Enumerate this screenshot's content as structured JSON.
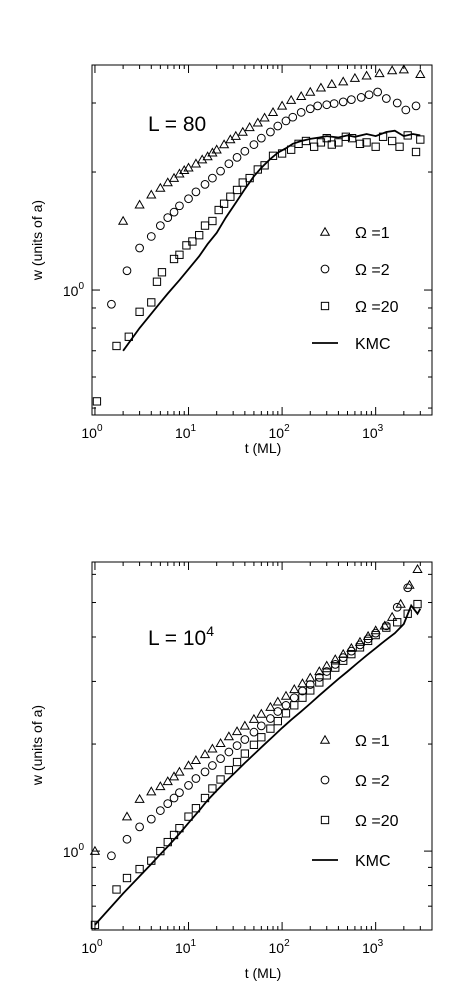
{
  "chart_data": [
    {
      "type": "scatter",
      "annotation": "L = 80",
      "xlabel": "t (ML)",
      "ylabel": "w  (units of a)",
      "xscale": "log",
      "yscale": "log",
      "xlim": [
        0.93,
        4000
      ],
      "ylim": [
        0.48,
        3.75
      ],
      "x_ticks": [
        {
          "base": "10",
          "exp": "0",
          "value": 1
        },
        {
          "base": "10",
          "exp": "1",
          "value": 10
        },
        {
          "base": "10",
          "exp": "2",
          "value": 100
        },
        {
          "base": "10",
          "exp": "3",
          "value": 1000
        }
      ],
      "y_ticks": [
        {
          "base": "10",
          "exp": "0",
          "value": 1
        }
      ],
      "legend_position": "right",
      "series": [
        {
          "name": "Ω =1",
          "marker": "triangle",
          "x": [
            2,
            3,
            4,
            5,
            6,
            7,
            8,
            9,
            10,
            12,
            14,
            16,
            18,
            20,
            24,
            28,
            32,
            38,
            45,
            55,
            65,
            80,
            100,
            125,
            160,
            200,
            260,
            340,
            450,
            600,
            800,
            1100,
            1500,
            2000,
            3000
          ],
          "y": [
            1.5,
            1.65,
            1.75,
            1.82,
            1.88,
            1.93,
            1.98,
            2.02,
            2.05,
            2.1,
            2.15,
            2.19,
            2.24,
            2.28,
            2.35,
            2.42,
            2.47,
            2.53,
            2.6,
            2.67,
            2.75,
            2.84,
            2.95,
            3.05,
            3.12,
            3.2,
            3.28,
            3.35,
            3.4,
            3.47,
            3.52,
            3.57,
            3.63,
            3.65,
            3.55
          ]
        },
        {
          "name": "Ω =2",
          "marker": "circle",
          "x": [
            1.5,
            2.2,
            3,
            4,
            5,
            6,
            7,
            8,
            10,
            12,
            15,
            18,
            22,
            27,
            33,
            40,
            50,
            60,
            75,
            90,
            110,
            130,
            160,
            200,
            240,
            300,
            360,
            450,
            550,
            700,
            850,
            1050,
            1300,
            1700,
            2100,
            2700
          ],
          "y": [
            0.92,
            1.12,
            1.28,
            1.37,
            1.46,
            1.53,
            1.58,
            1.64,
            1.71,
            1.78,
            1.86,
            1.93,
            2.01,
            2.1,
            2.18,
            2.26,
            2.35,
            2.44,
            2.53,
            2.62,
            2.7,
            2.76,
            2.84,
            2.9,
            2.95,
            2.97,
            2.99,
            3.02,
            3.06,
            3.1,
            3.15,
            3.2,
            3.08,
            3.0,
            2.88,
            2.95
          ]
        },
        {
          "name": "Ω =20",
          "marker": "square",
          "x": [
            1.05,
            1.7,
            2.3,
            3,
            4,
            4.6,
            5.2,
            7,
            8,
            9.5,
            11,
            13,
            15,
            18,
            21,
            24,
            28,
            33,
            38,
            45,
            55,
            65,
            80,
            100,
            125,
            150,
            180,
            220,
            260,
            300,
            340,
            400,
            480,
            560,
            680,
            800,
            1000,
            1200,
            1500,
            1800,
            2200,
            2700,
            3000
          ],
          "y": [
            0.52,
            0.72,
            0.76,
            0.88,
            0.93,
            1.05,
            1.11,
            1.2,
            1.23,
            1.3,
            1.33,
            1.38,
            1.46,
            1.5,
            1.6,
            1.66,
            1.73,
            1.8,
            1.88,
            1.93,
            2.03,
            2.08,
            2.2,
            2.23,
            2.28,
            2.36,
            2.4,
            2.32,
            2.38,
            2.44,
            2.35,
            2.38,
            2.46,
            2.44,
            2.36,
            2.38,
            2.32,
            2.46,
            2.4,
            2.32,
            2.48,
            2.25,
            2.42
          ]
        },
        {
          "name": "KMC",
          "marker": "line",
          "x": [
            2,
            3,
            4,
            5,
            6,
            8,
            10,
            13,
            16,
            20,
            25,
            32,
            40,
            50,
            60,
            75,
            90,
            110,
            130,
            160,
            200,
            250,
            300,
            400,
            500,
            600,
            800,
            1000,
            1300,
            1600,
            2000,
            2500,
            3000
          ],
          "y": [
            0.7,
            0.8,
            0.87,
            0.93,
            0.98,
            1.06,
            1.13,
            1.22,
            1.31,
            1.4,
            1.53,
            1.67,
            1.81,
            1.95,
            2.05,
            2.16,
            2.24,
            2.3,
            2.36,
            2.4,
            2.43,
            2.45,
            2.47,
            2.45,
            2.48,
            2.46,
            2.5,
            2.47,
            2.53,
            2.55,
            2.47,
            2.5,
            2.48
          ]
        }
      ]
    },
    {
      "type": "scatter",
      "annotation_base": "L = 10",
      "annotation_exp": "4",
      "xlabel": "t (ML)",
      "ylabel": "w  (units of a)",
      "xscale": "log",
      "yscale": "log",
      "xlim": [
        0.93,
        4000
      ],
      "ylim": [
        0.6,
        6.5
      ],
      "x_ticks": [
        {
          "base": "10",
          "exp": "0",
          "value": 1
        },
        {
          "base": "10",
          "exp": "1",
          "value": 10
        },
        {
          "base": "10",
          "exp": "2",
          "value": 100
        },
        {
          "base": "10",
          "exp": "3",
          "value": 1000
        }
      ],
      "y_ticks": [
        {
          "base": "10",
          "exp": "0",
          "value": 1
        }
      ],
      "legend_position": "right",
      "series": [
        {
          "name": "Ω =1",
          "marker": "triangle",
          "x": [
            1,
            2.2,
            3,
            4,
            5,
            6,
            7,
            8,
            10,
            12,
            15,
            18,
            22,
            27,
            33,
            40,
            50,
            60,
            75,
            90,
            110,
            135,
            165,
            200,
            250,
            300,
            370,
            450,
            550,
            680,
            830,
            1000,
            1250,
            1500,
            1850,
            2300,
            2800
          ],
          "y": [
            1.0,
            1.25,
            1.4,
            1.47,
            1.52,
            1.57,
            1.62,
            1.67,
            1.74,
            1.8,
            1.87,
            1.94,
            2.01,
            2.1,
            2.17,
            2.25,
            2.35,
            2.43,
            2.54,
            2.63,
            2.73,
            2.85,
            2.96,
            3.07,
            3.2,
            3.32,
            3.46,
            3.58,
            3.72,
            3.87,
            4.02,
            4.17,
            4.3,
            4.55,
            4.95,
            5.6,
            6.2
          ]
        },
        {
          "name": "Ω =2",
          "marker": "circle",
          "x": [
            1.5,
            2.2,
            3,
            4,
            5,
            6,
            7,
            8,
            10,
            12,
            15,
            18,
            22,
            27,
            33,
            40,
            50,
            60,
            75,
            90,
            110,
            135,
            165,
            200,
            250,
            300,
            370,
            450,
            550,
            680,
            830,
            1000,
            1300,
            1700,
            2200
          ],
          "y": [
            0.97,
            1.08,
            1.17,
            1.23,
            1.3,
            1.36,
            1.41,
            1.46,
            1.53,
            1.6,
            1.67,
            1.74,
            1.82,
            1.9,
            1.98,
            2.06,
            2.16,
            2.25,
            2.36,
            2.47,
            2.57,
            2.7,
            2.82,
            2.94,
            3.08,
            3.2,
            3.35,
            3.5,
            3.65,
            3.8,
            3.95,
            4.1,
            4.3,
            4.85,
            5.5
          ]
        },
        {
          "name": "Ω =20",
          "marker": "square",
          "x": [
            1,
            1.7,
            2.2,
            3,
            4,
            5,
            6,
            7,
            8,
            10,
            12,
            15,
            18,
            22,
            27,
            33,
            40,
            50,
            60,
            75,
            90,
            110,
            135,
            165,
            200,
            250,
            300,
            370,
            450,
            550,
            680,
            830,
            1000,
            1300,
            1700,
            2200,
            2800
          ],
          "y": [
            0.62,
            0.78,
            0.84,
            0.89,
            0.94,
            1.0,
            1.06,
            1.11,
            1.16,
            1.25,
            1.32,
            1.41,
            1.5,
            1.59,
            1.69,
            1.78,
            1.88,
            1.99,
            2.09,
            2.21,
            2.32,
            2.44,
            2.57,
            2.7,
            2.83,
            2.98,
            3.12,
            3.28,
            3.43,
            3.58,
            3.74,
            3.9,
            4.05,
            4.25,
            4.4,
            4.65,
            4.95
          ]
        },
        {
          "name": "KMC",
          "marker": "line",
          "x": [
            1,
            2,
            3,
            4,
            5,
            6,
            8,
            10,
            13,
            16,
            20,
            25,
            32,
            40,
            50,
            64,
            80,
            100,
            125,
            160,
            200,
            250,
            320,
            400,
            500,
            640,
            800,
            1000,
            1250,
            1600,
            2000,
            2400,
            2800,
            3000
          ],
          "y": [
            0.62,
            0.76,
            0.85,
            0.92,
            0.98,
            1.03,
            1.12,
            1.2,
            1.3,
            1.39,
            1.48,
            1.57,
            1.67,
            1.77,
            1.87,
            1.99,
            2.1,
            2.22,
            2.34,
            2.47,
            2.6,
            2.74,
            2.9,
            3.05,
            3.2,
            3.38,
            3.55,
            3.72,
            3.9,
            4.1,
            4.35,
            4.9,
            4.65,
            4.8
          ]
        }
      ]
    }
  ]
}
